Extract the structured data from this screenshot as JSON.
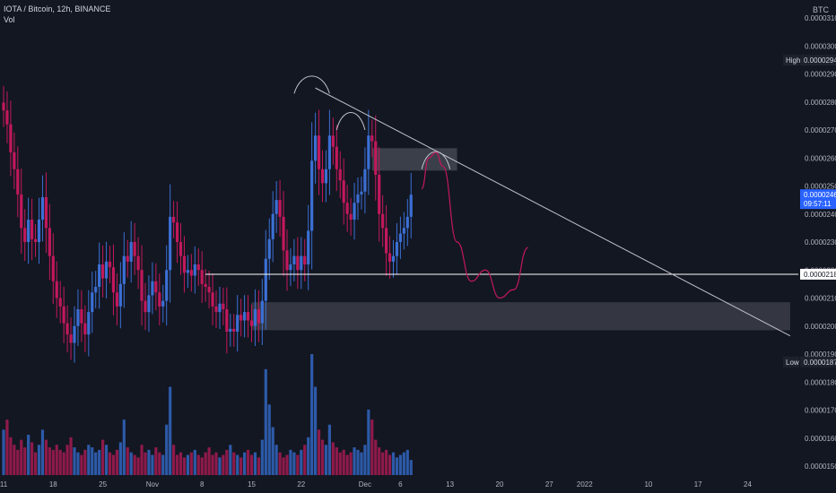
{
  "header": {
    "title": "IOTA / Bitcoin, 12h, BINANCE",
    "volume_label": "Vol"
  },
  "scale_currency": "BTC",
  "colors": {
    "background": "#131722",
    "bull": "#3b6fd4",
    "bear": "#c2185b",
    "bull_vol": "#2d5aa8",
    "bear_vol": "#8e1a4a",
    "forecast": "#c2185b",
    "trendline": "#c0c3cc",
    "level_line": "#ffffff",
    "zone_fill": "#5d606b",
    "current_price": "#2962ff",
    "axis_text": "#b2b5be"
  },
  "chart_data": {
    "type": "candlestick",
    "symbol": "IOTA / Bitcoin",
    "interval": "12h",
    "exchange": "BINANCE",
    "y_unit": "BTC",
    "ylim": [
      1.45e-05,
      3.15e-05
    ],
    "y_ticks": [
      "0.00003100",
      "0.00003000",
      "0.00002900",
      "0.00002800",
      "0.00002700",
      "0.00002600",
      "0.00002500",
      "0.00002400",
      "0.00002300",
      "0.00002200",
      "0.00002100",
      "0.00002000",
      "0.00001900",
      "0.00001800",
      "0.00001700",
      "0.00001600",
      "0.00001500"
    ],
    "x_ticks": [
      {
        "label": "11",
        "date": "2021-10-11"
      },
      {
        "label": "18",
        "date": "2021-10-18"
      },
      {
        "label": "25",
        "date": "2021-10-25"
      },
      {
        "label": "Nov",
        "date": "2021-11-01"
      },
      {
        "label": "8",
        "date": "2021-11-08"
      },
      {
        "label": "15",
        "date": "2021-11-15"
      },
      {
        "label": "22",
        "date": "2021-11-22"
      },
      {
        "label": "Dec",
        "date": "2021-12-01"
      },
      {
        "label": "6",
        "date": "2021-12-06"
      },
      {
        "label": "13",
        "date": "2021-12-13"
      },
      {
        "label": "20",
        "date": "2021-12-20"
      },
      {
        "label": "27",
        "date": "2021-12-27"
      },
      {
        "label": "2022",
        "date": "2022-01-01"
      },
      {
        "label": "10",
        "date": "2022-01-10"
      },
      {
        "label": "17",
        "date": "2022-01-17"
      },
      {
        "label": "24",
        "date": "2022-01-24"
      }
    ],
    "price_tags": [
      {
        "kind": "high",
        "label": "High",
        "value": "0.00002949"
      },
      {
        "kind": "current",
        "value": "0.00002469",
        "countdown": "09:57:11"
      },
      {
        "kind": "level",
        "value": "0.00002185"
      },
      {
        "kind": "low",
        "label": "Low",
        "value": "0.00001872"
      }
    ],
    "price_series": {
      "start": "2021-10-11",
      "interval_hours": 12,
      "close": [
        2.77e-05,
        2.72e-05,
        2.62e-05,
        2.56e-05,
        2.47e-05,
        2.35e-05,
        2.3e-05,
        2.38e-05,
        2.31e-05,
        2.3e-05,
        2.38e-05,
        2.46e-05,
        2.35e-05,
        2.25e-05,
        2.16e-05,
        2.1e-05,
        2.07e-05,
        2.01e-05,
        1.97e-05,
        1.94e-05,
        2e-05,
        2.06e-05,
        2.01e-05,
        1.97e-05,
        2.05e-05,
        2.12e-05,
        2.14e-05,
        2.22e-05,
        2.17e-05,
        2.23e-05,
        2.21e-05,
        2.12e-05,
        2.07e-05,
        2.15e-05,
        2.25e-05,
        2.23e-05,
        2.3e-05,
        2.25e-05,
        2.2e-05,
        2.09e-05,
        2.05e-05,
        2.11e-05,
        2.16e-05,
        2.12e-05,
        2.07e-05,
        2.09e-05,
        2.2e-05,
        2.39e-05,
        2.37e-05,
        2.3e-05,
        2.25e-05,
        2.19e-05,
        2.2e-05,
        2.18e-05,
        2.22e-05,
        2.2e-05,
        2.15e-05,
        2.14e-05,
        2.12e-05,
        2.07e-05,
        2.05e-05,
        2.08e-05,
        2.06e-05,
        1.98e-05,
        1.99e-05,
        1.98e-05,
        2.04e-05,
        2.02e-05,
        2.05e-05,
        2.02e-05,
        2e-05,
        2.06e-05,
        2.01e-05,
        2.09e-05,
        2.24e-05,
        2.31e-05,
        2.4e-05,
        2.45e-05,
        2.39e-05,
        2.27e-05,
        2.2e-05,
        2.22e-05,
        2.25e-05,
        2.2e-05,
        2.25e-05,
        2.22e-05,
        2.34e-05,
        2.59e-05,
        2.68e-05,
        2.56e-05,
        2.51e-05,
        2.56e-05,
        2.68e-05,
        2.64e-05,
        2.56e-05,
        2.52e-05,
        2.44e-05,
        2.4e-05,
        2.38e-05,
        2.44e-05,
        2.47e-05,
        2.48e-05,
        2.56e-05,
        2.68e-05,
        2.66e-05,
        2.54e-05,
        2.4e-05,
        2.35e-05,
        2.26e-05,
        2.23e-05,
        2.25e-05,
        2.3e-05,
        2.33e-05,
        2.35e-05,
        2.39e-05,
        2.469e-05
      ]
    },
    "volume": {
      "start": "2021-10-11",
      "interval_hours": 12,
      "values": [
        18,
        22,
        15,
        12,
        10,
        14,
        11,
        16,
        13,
        9,
        12,
        18,
        14,
        11,
        10,
        12,
        10,
        9,
        12,
        15,
        11,
        9,
        8,
        10,
        12,
        11,
        9,
        10,
        14,
        12,
        9,
        8,
        10,
        13,
        22,
        11,
        9,
        8,
        7,
        12,
        9,
        10,
        8,
        11,
        9,
        8,
        20,
        35,
        12,
        8,
        9,
        7,
        8,
        9,
        10,
        8,
        7,
        9,
        11,
        8,
        9,
        7,
        8,
        10,
        12,
        9,
        8,
        7,
        9,
        10,
        8,
        9,
        7,
        14,
        42,
        28,
        19,
        12,
        9,
        7,
        8,
        10,
        9,
        8,
        10,
        12,
        15,
        48,
        35,
        18,
        14,
        12,
        20,
        13,
        11,
        9,
        10,
        8,
        9,
        11,
        10,
        9,
        12,
        26,
        22,
        14,
        11,
        9,
        10,
        8,
        9,
        7,
        8,
        9,
        10,
        6
      ]
    },
    "annotations": {
      "resistance_zone": {
        "top": 2.635e-05,
        "bottom": 2.555e-05,
        "from": "2021-12-02",
        "to": "2021-12-14"
      },
      "support_zone": {
        "top": 2.085e-05,
        "bottom": 1.985e-05,
        "from": "2021-11-15",
        "to": "2022-01-30"
      },
      "horizontal_level": {
        "value": 2.185e-05,
        "from": "2021-11-08T12:00",
        "to": "2022-01-30"
      },
      "descending_trendline": {
        "from": {
          "date": "2021-11-24",
          "value": 2.85e-05
        },
        "to": {
          "date": "2022-01-30",
          "value": 1.965e-05
        }
      },
      "projected_path": [
        {
          "date": "2021-12-09",
          "value": 2.49e-05
        },
        {
          "date": "2021-12-10",
          "value": 2.6e-05
        },
        {
          "date": "2021-12-11",
          "value": 2.62e-05
        },
        {
          "date": "2021-12-12",
          "value": 2.57e-05
        },
        {
          "date": "2021-12-14",
          "value": 2.3e-05
        },
        {
          "date": "2021-12-16",
          "value": 2.16e-05
        },
        {
          "date": "2021-12-18",
          "value": 2.2e-05
        },
        {
          "date": "2021-12-20",
          "value": 2.1e-05
        },
        {
          "date": "2021-12-22",
          "value": 2.13e-05
        },
        {
          "date": "2021-12-24",
          "value": 2.28e-05
        }
      ],
      "head_and_shoulders_arcs": [
        {
          "from": "2021-11-21",
          "peak": "2021-11-23T12:00",
          "to": "2021-11-26",
          "value": 2.83e-05
        },
        {
          "from": "2021-11-27",
          "peak": "2021-11-29",
          "to": "2021-12-01",
          "value": 2.7e-05
        },
        {
          "from": "2021-12-09",
          "peak": "2021-12-11",
          "to": "2021-12-13",
          "value": 2.56e-05
        }
      ]
    }
  }
}
